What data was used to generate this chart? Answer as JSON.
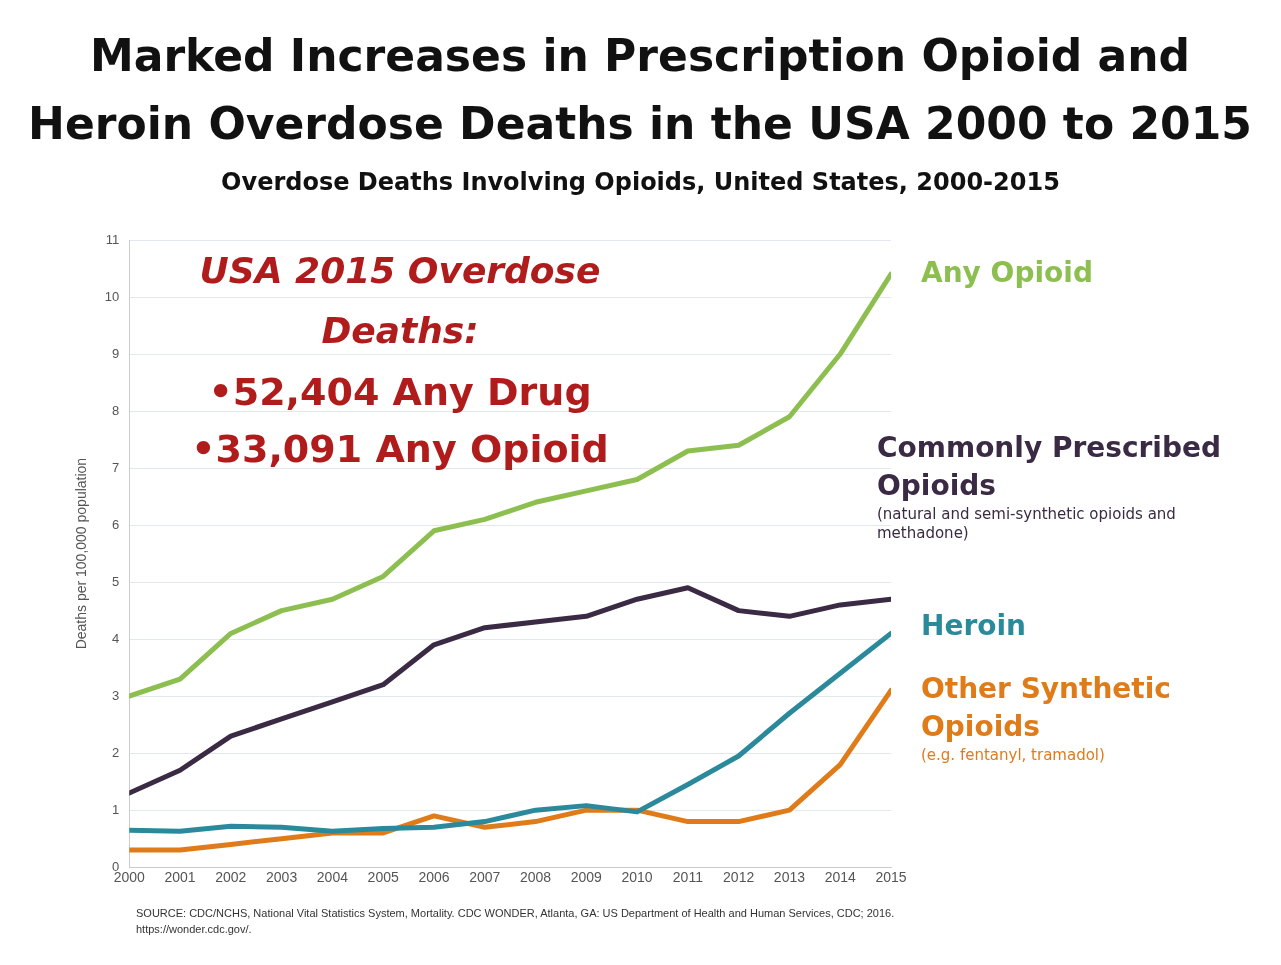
{
  "chart_data": {
    "type": "line",
    "title": "Marked Increases in Prescription Opioid and Heroin Overdose Deaths in the USA 2000 to 2015",
    "subtitle": "Overdose Deaths Involving Opioids, United States, 2000-2015",
    "ylabel": "Deaths per 100,000 population",
    "x": [
      2000,
      2001,
      2002,
      2003,
      2004,
      2005,
      2006,
      2007,
      2008,
      2009,
      2010,
      2011,
      2012,
      2013,
      2014,
      2015
    ],
    "xlim": [
      2000,
      2015
    ],
    "xticks": [
      2000,
      2001,
      2002,
      2003,
      2004,
      2005,
      2006,
      2007,
      2008,
      2009,
      2010,
      2011,
      2012,
      2013,
      2014,
      2015
    ],
    "ylim": [
      0,
      11
    ],
    "yticks": [
      0,
      1,
      2,
      3,
      4,
      5,
      6,
      7,
      8,
      9,
      10,
      11
    ],
    "grid": "y",
    "legend": false,
    "marker": "none",
    "line_style": "solid",
    "series": [
      {
        "name": "Any Opioid",
        "color": "#8cbf4f",
        "values": [
          3.0,
          3.3,
          4.1,
          4.5,
          4.7,
          5.1,
          5.9,
          6.1,
          6.4,
          6.6,
          6.8,
          7.3,
          7.4,
          7.9,
          9.0,
          10.4
        ]
      },
      {
        "name": "Commonly Prescribed Opioids",
        "color": "#3b2a44",
        "values": [
          1.3,
          1.7,
          2.3,
          2.6,
          2.9,
          3.2,
          3.9,
          4.2,
          4.3,
          4.4,
          4.7,
          4.9,
          4.5,
          4.4,
          4.6,
          4.7
        ]
      },
      {
        "name": "Heroin",
        "color": "#2a8a9c",
        "values": [
          0.65,
          0.63,
          0.72,
          0.7,
          0.63,
          0.68,
          0.7,
          0.8,
          1.0,
          1.08,
          0.97,
          1.45,
          1.95,
          2.7,
          3.4,
          4.1
        ]
      },
      {
        "name": "Other Synthetic Opioids",
        "color": "#e07b1a",
        "values": [
          0.3,
          0.3,
          0.4,
          0.5,
          0.6,
          0.6,
          0.9,
          0.7,
          0.8,
          1.0,
          1.0,
          0.8,
          0.8,
          1.0,
          1.8,
          3.1
        ]
      }
    ],
    "annotations": [
      "USA 2015 Overdose Deaths:",
      "•52,404 Any Drug",
      "•33,091 Any Opioid",
      "(natural and semi-synthetic opioids and methadone)",
      "(e.g. fentanyl, tramadol)",
      "SOURCE: CDC/NCHS, National Vital Statistics System, Mortality. CDC WONDER, Atlanta, GA: US Department of Health and Human Services, CDC; 2016. https://wonder.cdc.gov/."
    ]
  }
}
